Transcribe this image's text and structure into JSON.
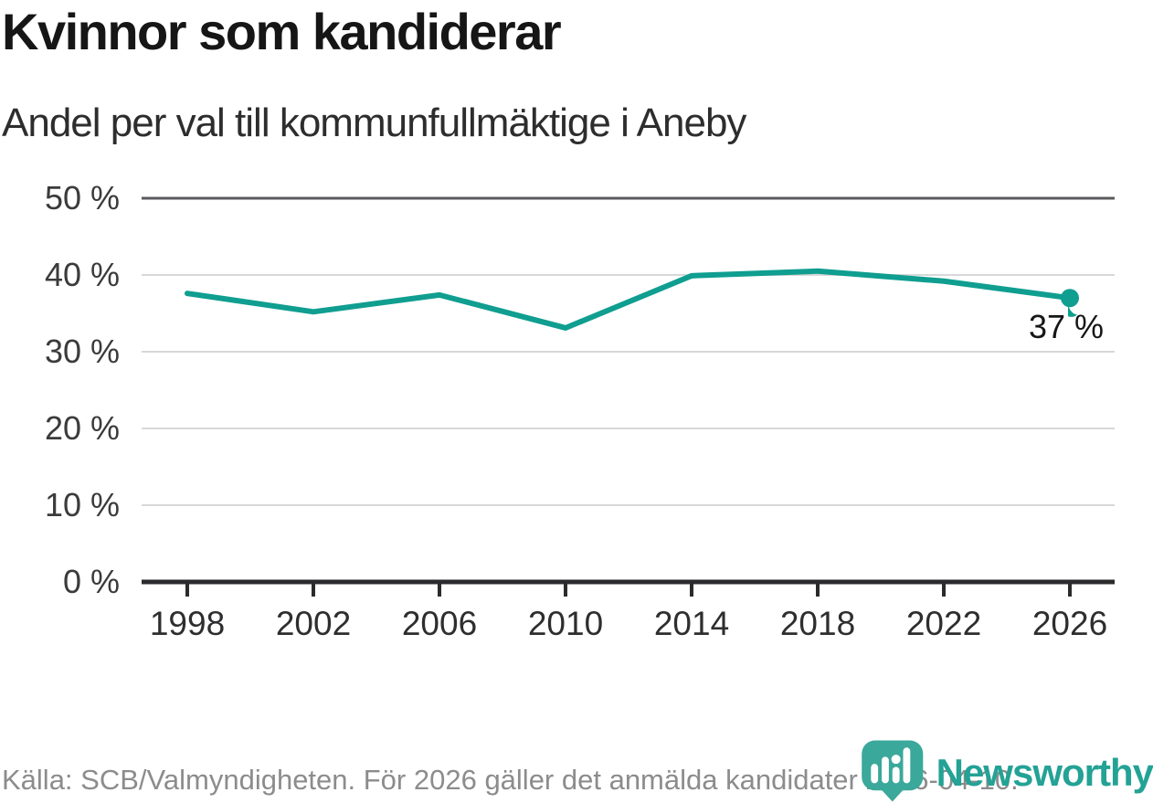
{
  "chart_data": {
    "type": "line",
    "title": "Kvinnor som kandiderar",
    "subtitle": "Andel per val till kommunfullmäktige i Aneby",
    "x": [
      1998,
      2002,
      2006,
      2010,
      2014,
      2018,
      2022,
      2026
    ],
    "values": [
      37.6,
      35.2,
      37.4,
      33.1,
      39.9,
      40.5,
      39.2,
      37
    ],
    "ylim": [
      0,
      50
    ],
    "ytick_step": 10,
    "ytick_suffix": " %",
    "xlabel": "",
    "ylabel": "",
    "grid": true,
    "legend_position": "none",
    "end_label": "37 %"
  },
  "footer": {
    "source": "Källa: SCB/Valmyndigheten. För 2026 gäller det anmälda kandidater 2026-04-10.",
    "brand": "Newsworthy"
  },
  "colors": {
    "accent": "#0f9e90",
    "logo_teal": "#3aa89a",
    "wordmark_teal": "#23a295",
    "grid_light": "#d8d8d8",
    "grid_dark": "#5a5a5c",
    "axis_dark": "#2b2b2d",
    "end_label_text": "#161616"
  }
}
